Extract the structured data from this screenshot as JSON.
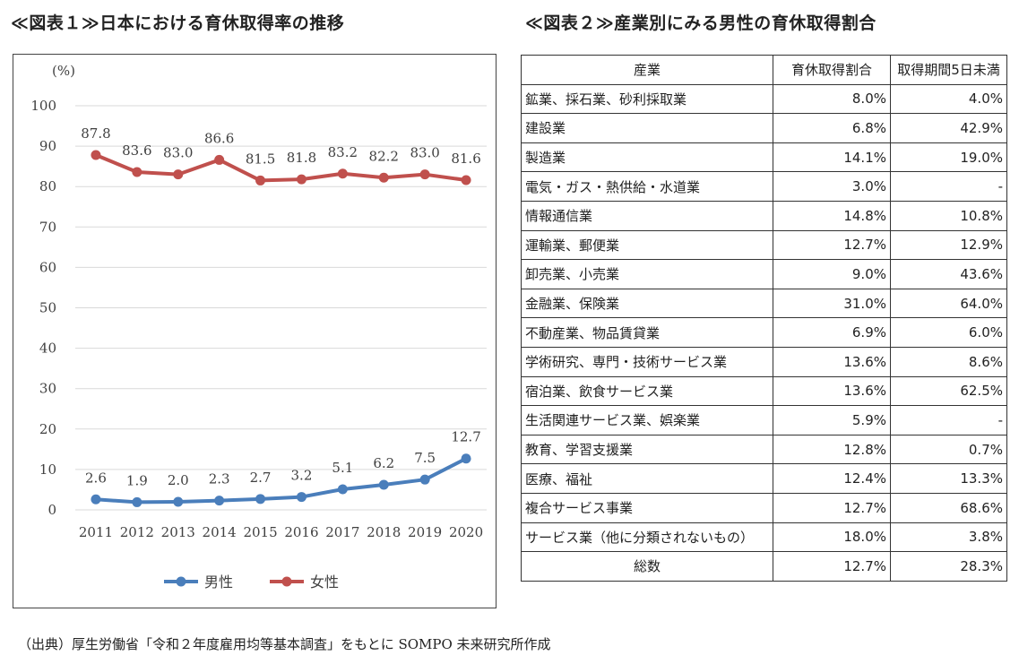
{
  "headings": {
    "chart": "≪図表１≫日本における育休取得率の推移",
    "table": "≪図表２≫産業別にみる男性の育休取得割合"
  },
  "colors": {
    "male": "#4a7ebb",
    "female": "#c0504d",
    "grid": "#d9d9d9",
    "text": "#404040"
  },
  "chart_data": {
    "type": "line",
    "unit_label": "(%)",
    "x": [
      "2011",
      "2012",
      "2013",
      "2014",
      "2015",
      "2016",
      "2017",
      "2018",
      "2019",
      "2020"
    ],
    "ylim": [
      0,
      100
    ],
    "yticks": [
      0,
      10,
      20,
      30,
      40,
      50,
      60,
      70,
      80,
      90,
      100
    ],
    "grid": true,
    "legend_position": "bottom",
    "series": [
      {
        "name": "男性",
        "values": [
          2.6,
          1.9,
          2.0,
          2.3,
          2.7,
          3.2,
          5.1,
          6.2,
          7.5,
          12.7
        ],
        "labels": [
          "2.6",
          "1.9",
          "2.0",
          "2.3",
          "2.7",
          "3.2",
          "5.1",
          "6.2",
          "7.5",
          "12.7"
        ]
      },
      {
        "name": "女性",
        "values": [
          87.8,
          83.6,
          83.0,
          86.6,
          81.5,
          81.8,
          83.2,
          82.2,
          83.0,
          81.6
        ],
        "labels": [
          "87.8",
          "83.6",
          "83.0",
          "86.6",
          "81.5",
          "81.8",
          "83.2",
          "82.2",
          "83.0",
          "81.6"
        ]
      }
    ]
  },
  "table": {
    "headers": [
      "産業",
      "育休取得割合",
      "取得期間5日未満"
    ],
    "rows": [
      [
        "鉱業、採石業、砂利採取業",
        "8.0%",
        "4.0%"
      ],
      [
        "建設業",
        "6.8%",
        "42.9%"
      ],
      [
        "製造業",
        "14.1%",
        "19.0%"
      ],
      [
        "電気・ガス・熱供給・水道業",
        "3.0%",
        "-"
      ],
      [
        "情報通信業",
        "14.8%",
        "10.8%"
      ],
      [
        "運輸業、郵便業",
        "12.7%",
        "12.9%"
      ],
      [
        "卸売業、小売業",
        "9.0%",
        "43.6%"
      ],
      [
        "金融業、保険業",
        "31.0%",
        "64.0%"
      ],
      [
        "不動産業、物品賃貸業",
        "6.9%",
        "6.0%"
      ],
      [
        "学術研究、専門・技術サービス業",
        "13.6%",
        "8.6%"
      ],
      [
        "宿泊業、飲食サービス業",
        "13.6%",
        "62.5%"
      ],
      [
        "生活関連サービス業、娯楽業",
        "5.9%",
        "-"
      ],
      [
        "教育、学習支援業",
        "12.8%",
        "0.7%"
      ],
      [
        "医療、福祉",
        "12.4%",
        "13.3%"
      ],
      [
        "複合サービス事業",
        "12.7%",
        "68.6%"
      ],
      [
        "サービス業（他に分類されないもの）",
        "18.0%",
        "3.8%"
      ]
    ],
    "total": [
      "総数",
      "12.7%",
      "28.3%"
    ]
  },
  "source": "（出典）厚生労働省「令和２年度雇用均等基本調査」をもとに SOMPO 未来研究所作成"
}
